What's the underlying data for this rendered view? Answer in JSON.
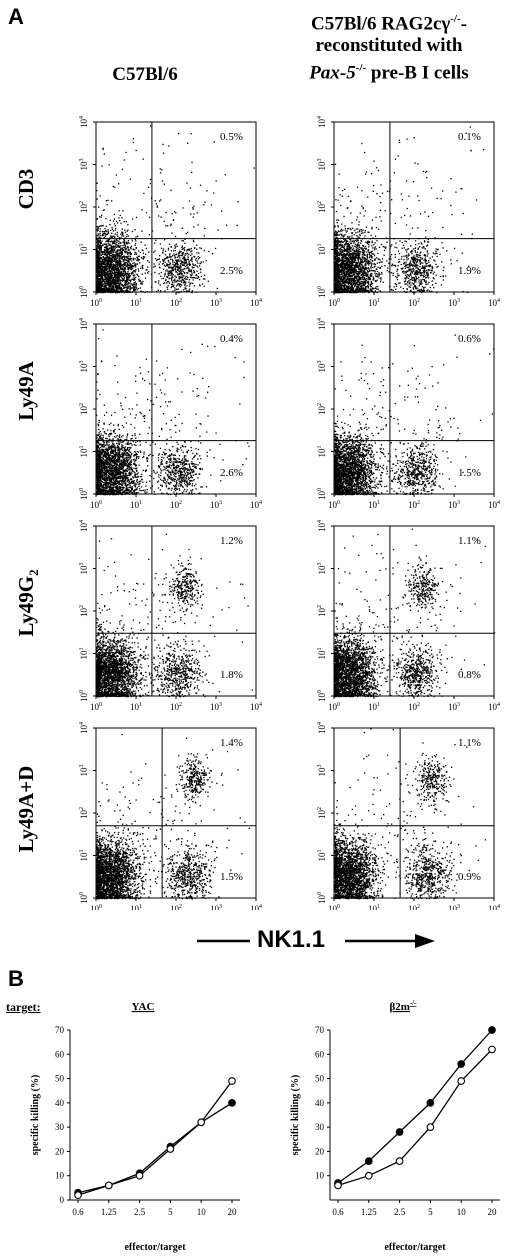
{
  "panel_a": {
    "label": "A"
  },
  "panel_b": {
    "label": "B",
    "target_label": "target:"
  },
  "columns": {
    "left": {
      "lines": [
        "C57Bl/6"
      ]
    },
    "right": {
      "line1": "C57Bl/6 RAG2cγ",
      "line1_sup": "-/-",
      "line1_tail": "-",
      "line2": "reconstituted with",
      "line3_italic": "Pax-5",
      "line3_sup": "-/-",
      "line3_tail": " pre-B I cells"
    }
  },
  "nk_axis_label": "NK1.1",
  "log_ticks": [
    "10",
    "10",
    "10",
    "10",
    "10"
  ],
  "log_exps": [
    "0",
    "1",
    "2",
    "3",
    "4"
  ],
  "chart_data": [
    {
      "type": "scatter",
      "row": "CD3",
      "column": "C57Bl/6",
      "axis": "log",
      "xlim": [
        1,
        10000
      ],
      "ylim": [
        1,
        10000
      ],
      "gate": {
        "x": 25,
        "y": 18
      },
      "upper_right": "0.5%",
      "lower_right": "2.5%"
    },
    {
      "type": "scatter",
      "row": "CD3",
      "column": "reconstituted",
      "axis": "log",
      "xlim": [
        1,
        10000
      ],
      "ylim": [
        1,
        10000
      ],
      "gate": {
        "x": 25,
        "y": 18
      },
      "upper_right": "0.1%",
      "lower_right": "1.9%"
    },
    {
      "type": "scatter",
      "row": "Ly49A",
      "column": "C57Bl/6",
      "axis": "log",
      "xlim": [
        1,
        10000
      ],
      "ylim": [
        1,
        10000
      ],
      "gate": {
        "x": 25,
        "y": 18
      },
      "upper_right": "0.4%",
      "lower_right": "2.6%"
    },
    {
      "type": "scatter",
      "row": "Ly49A",
      "column": "reconstituted",
      "axis": "log",
      "xlim": [
        1,
        10000
      ],
      "ylim": [
        1,
        10000
      ],
      "gate": {
        "x": 25,
        "y": 18
      },
      "upper_right": "0.6%",
      "lower_right": "1.5%"
    },
    {
      "type": "scatter",
      "row": "Ly49G2",
      "column": "C57Bl/6",
      "axis": "log",
      "xlim": [
        1,
        10000
      ],
      "ylim": [
        1,
        10000
      ],
      "gate": {
        "x": 25,
        "y": 30
      },
      "upper_right": "1.2%",
      "lower_right": "1.8%"
    },
    {
      "type": "scatter",
      "row": "Ly49G2",
      "column": "reconstituted",
      "axis": "log",
      "xlim": [
        1,
        10000
      ],
      "ylim": [
        1,
        10000
      ],
      "gate": {
        "x": 25,
        "y": 30
      },
      "upper_right": "1.1%",
      "lower_right": "0.8%"
    },
    {
      "type": "scatter",
      "row": "Ly49A+D",
      "column": "C57Bl/6",
      "axis": "log",
      "xlim": [
        1,
        10000
      ],
      "ylim": [
        1,
        10000
      ],
      "gate": {
        "x": 45,
        "y": 50
      },
      "upper_right": "1.4%",
      "lower_right": "1.5%"
    },
    {
      "type": "scatter",
      "row": "Ly49A+D",
      "column": "reconstituted",
      "axis": "log",
      "xlim": [
        1,
        10000
      ],
      "ylim": [
        1,
        10000
      ],
      "gate": {
        "x": 45,
        "y": 50
      },
      "upper_right": "1.1%",
      "lower_right": "0.9%"
    },
    {
      "type": "line",
      "title": "YAC",
      "xlabel": "effector/target",
      "ylabel": "specific killing (%)",
      "categories": [
        "0.6",
        "1.25",
        "2.5",
        "5",
        "10",
        "20"
      ],
      "ylim": [
        0,
        70
      ],
      "yticks": [
        "0",
        "10",
        "20",
        "30",
        "40",
        "50",
        "60",
        "70"
      ],
      "series": [
        {
          "marker": "filled",
          "values": [
            3,
            6,
            11,
            22,
            32,
            40
          ]
        },
        {
          "marker": "open",
          "values": [
            2,
            6,
            10,
            21,
            32,
            49
          ]
        }
      ]
    },
    {
      "type": "line",
      "title": "β2m",
      "title_sup": "-/-",
      "xlabel": "effector/target",
      "ylabel": "specific killing (%)",
      "categories": [
        "0.6",
        "1.25",
        "2.5",
        "5",
        "10",
        "20"
      ],
      "ylim": [
        0,
        70
      ],
      "yticks": [
        "10",
        "20",
        "30",
        "40",
        "50",
        "60",
        "70"
      ],
      "series": [
        {
          "marker": "filled",
          "values": [
            7,
            16,
            28,
            40,
            56,
            70
          ]
        },
        {
          "marker": "open",
          "values": [
            6,
            10,
            16,
            30,
            49,
            62
          ]
        }
      ]
    }
  ],
  "row_labels": [
    "CD3",
    "Ly49A",
    "Ly49G",
    "Ly49A+D"
  ],
  "row_label_sub": "2"
}
